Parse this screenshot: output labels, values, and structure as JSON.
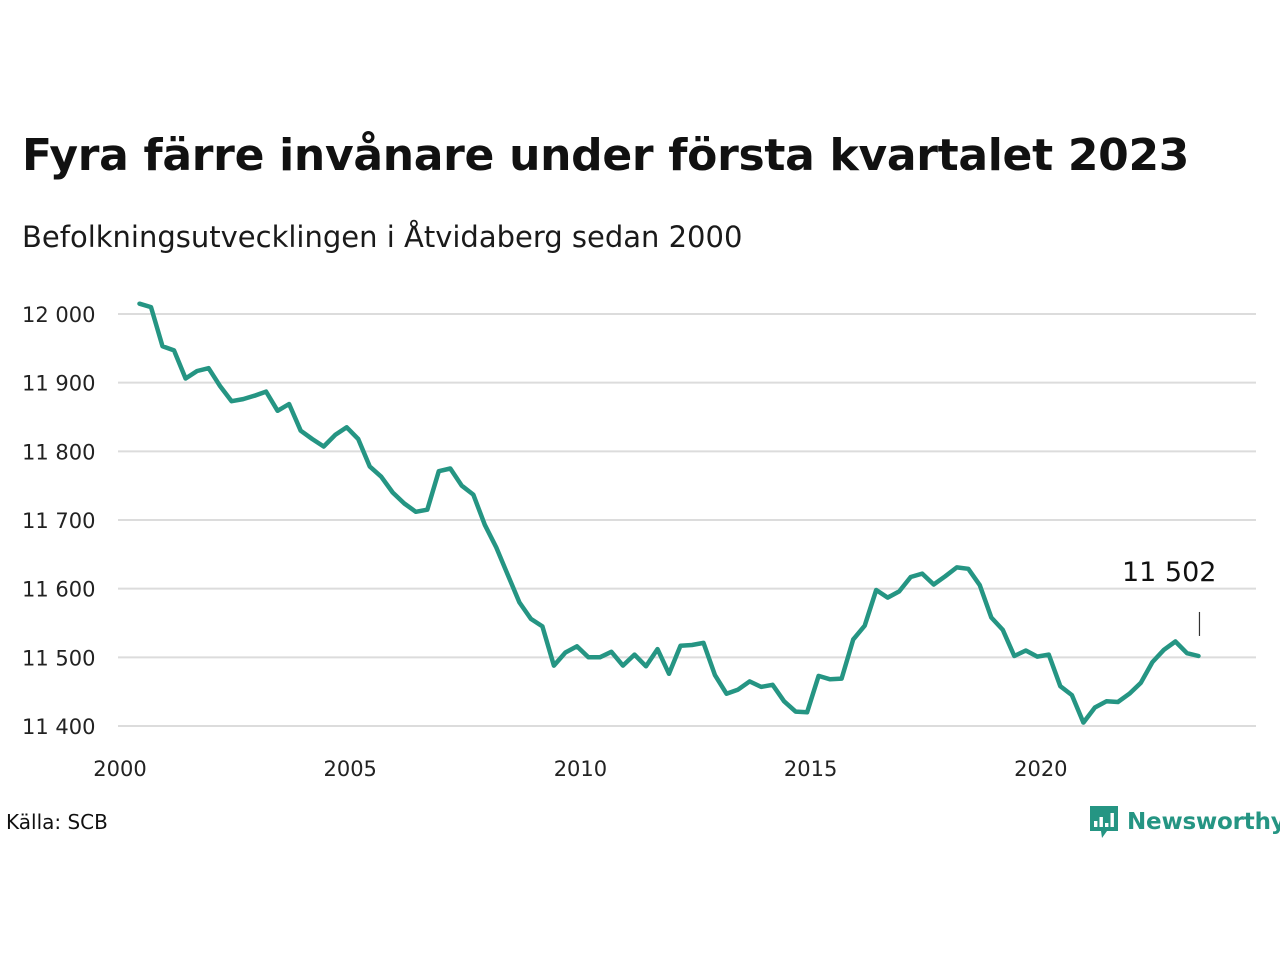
{
  "title": "Fyra färre invånare under första kvartalet 2023",
  "subtitle": "Befolkningsutvecklingen i Åtvidaberg sedan 2000",
  "source": "Källa: SCB",
  "brand": {
    "name": "Newsworthy",
    "icon": "newsworthy-logo-icon",
    "color": "#259583"
  },
  "chart_data": {
    "type": "line",
    "title": "Fyra färre invånare under första kvartalet 2023",
    "subtitle": "Befolkningsutvecklingen i Åtvidaberg sedan 2000",
    "xlabel": "",
    "ylabel": "",
    "xlim": [
      2000,
      2024
    ],
    "ylim": [
      11400,
      12000
    ],
    "grid": true,
    "x_ticks": [
      {
        "value": 2000,
        "label": "2000"
      },
      {
        "value": 2005,
        "label": "2005"
      },
      {
        "value": 2010,
        "label": "2010"
      },
      {
        "value": 2015,
        "label": "2015"
      },
      {
        "value": 2020,
        "label": "2020"
      }
    ],
    "y_ticks": [
      {
        "value": 11400,
        "label": "11 400"
      },
      {
        "value": 11500,
        "label": "11 500"
      },
      {
        "value": 11600,
        "label": "11 600"
      },
      {
        "value": 11700,
        "label": "11 700"
      },
      {
        "value": 11800,
        "label": "11 800"
      },
      {
        "value": 11900,
        "label": "11 900"
      },
      {
        "value": 12000,
        "label": "12 000"
      }
    ],
    "line_color": "#259583",
    "annotation": {
      "x": 2023.25,
      "y": 11502,
      "label": "11 502"
    },
    "series": [
      {
        "x": [
          2000.25,
          2000.5,
          2000.75,
          2001.0,
          2001.25,
          2001.5,
          2001.75,
          2002.0,
          2002.25,
          2002.5,
          2002.75,
          2003.0,
          2003.25,
          2003.5,
          2003.75,
          2004.0,
          2004.25,
          2004.5,
          2004.75,
          2005.0,
          2005.25,
          2005.5,
          2005.75,
          2006.0,
          2006.25,
          2006.5,
          2006.75,
          2007.0,
          2007.25,
          2007.5,
          2007.75,
          2008.0,
          2008.25,
          2008.5,
          2008.75,
          2009.0,
          2009.25,
          2009.5,
          2009.75,
          2010.0,
          2010.25,
          2010.5,
          2010.75,
          2011.0,
          2011.25,
          2011.5,
          2011.75,
          2012.0,
          2012.25,
          2012.5,
          2012.75,
          2013.0,
          2013.25,
          2013.5,
          2013.75,
          2014.0,
          2014.25,
          2014.5,
          2014.75,
          2015.0,
          2015.25,
          2015.5,
          2015.75,
          2016.0,
          2016.25,
          2016.5,
          2016.75,
          2017.0,
          2017.25,
          2017.5,
          2017.75,
          2018.0,
          2018.25,
          2018.5,
          2018.75,
          2019.0,
          2019.25,
          2019.5,
          2019.75,
          2020.0,
          2020.25,
          2020.5,
          2020.75,
          2021.0,
          2021.25,
          2021.5,
          2021.75,
          2022.0,
          2022.25,
          2022.5,
          2022.75,
          2023.0,
          2023.25
        ],
        "y": [
          12015,
          12010,
          11953,
          11947,
          11906,
          11917,
          11921,
          11895,
          11873,
          11876,
          11881,
          11887,
          11859,
          11869,
          11830,
          11818,
          11807,
          11824,
          11835,
          11818,
          11778,
          11763,
          11740,
          11724,
          11712,
          11715,
          11771,
          11775,
          11750,
          11737,
          11693,
          11660,
          11620,
          11580,
          11556,
          11545,
          11488,
          11507,
          11516,
          11500,
          11500,
          11508,
          11488,
          11504,
          11487,
          11512,
          11476,
          11517,
          11518,
          11521,
          11474,
          11447,
          11453,
          11465,
          11457,
          11460,
          11436,
          11421,
          11420,
          11473,
          11468,
          11469,
          11526,
          11546,
          11598,
          11587,
          11596,
          11617,
          11622,
          11606,
          11618,
          11631,
          11629,
          11605,
          11558,
          11540,
          11502,
          11510,
          11501,
          11504,
          11458,
          11445,
          11405,
          11427,
          11436,
          11435,
          11447,
          11463,
          11493,
          11511,
          11523,
          11506,
          11502
        ]
      }
    ]
  }
}
